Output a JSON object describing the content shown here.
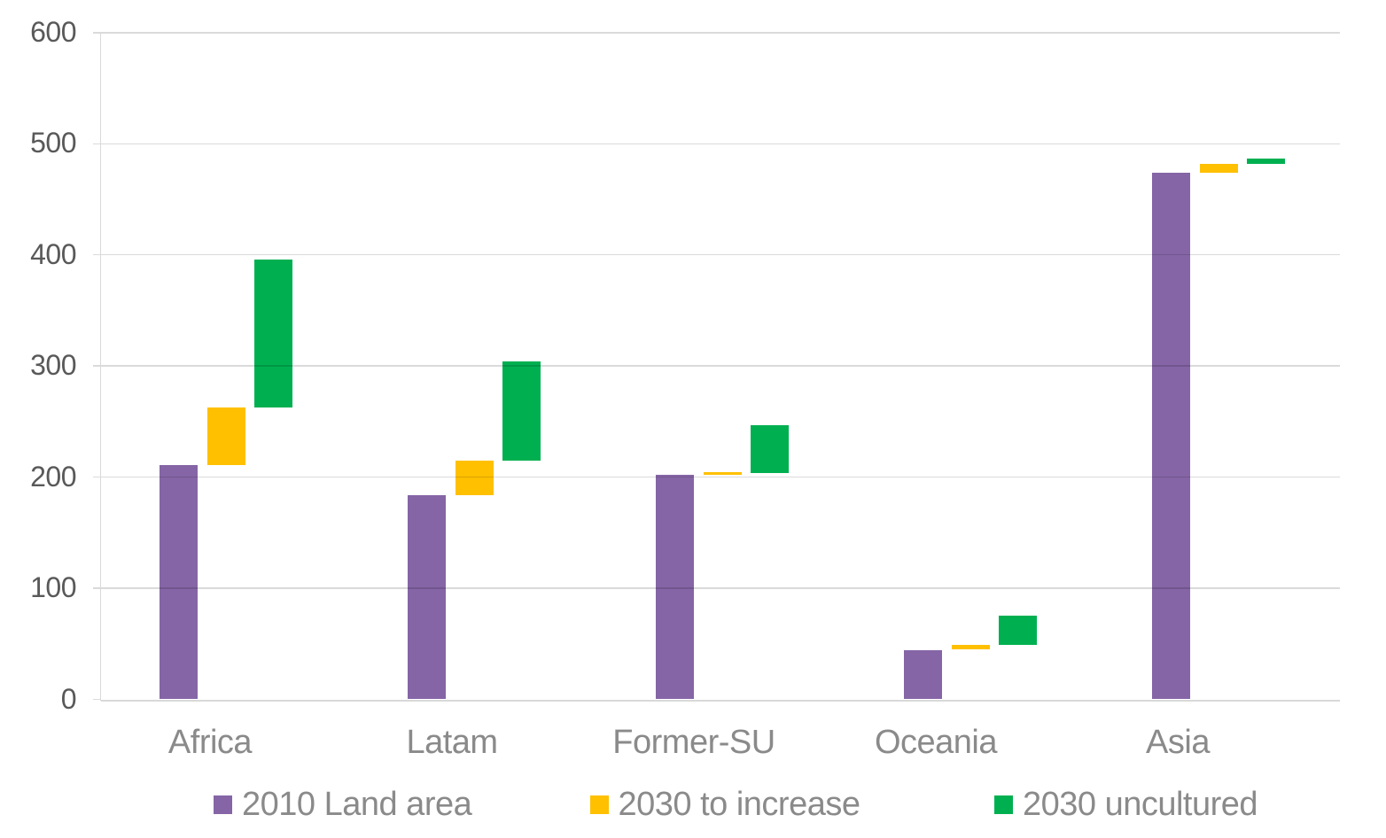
{
  "chart_data": {
    "type": "bar",
    "subtype": "grouped-floating-waterfall",
    "title": "",
    "xlabel": "",
    "ylabel": "",
    "categories": [
      "Africa",
      "Latam",
      "Former-SU",
      "Oceania",
      "Asia"
    ],
    "series": [
      {
        "name": "2010 Land area",
        "color": "#8565A6",
        "spans": [
          [
            0,
            211
          ],
          [
            0,
            184
          ],
          [
            0,
            202
          ],
          [
            0,
            44
          ],
          [
            0,
            474
          ]
        ]
      },
      {
        "name": "2030 to increase",
        "color": "#FFC000",
        "spans": [
          [
            211,
            263
          ],
          [
            184,
            215
          ],
          [
            202,
            204.5
          ],
          [
            45,
            49
          ],
          [
            474,
            482
          ]
        ]
      },
      {
        "name": "2030 uncultured",
        "color": "#00B050",
        "spans": [
          [
            263,
            396
          ],
          [
            215,
            304
          ],
          [
            203.5,
            247
          ],
          [
            49,
            75
          ],
          [
            482,
            486.5
          ]
        ]
      }
    ],
    "y_axis": {
      "min": 0,
      "max": 600,
      "step": 100,
      "tick_labels": [
        "0",
        "100",
        "200",
        "300",
        "400",
        "500",
        "600"
      ]
    },
    "grid": true,
    "legend_position": "bottom"
  },
  "colors": {
    "gridline": "#d9d9d9",
    "axis_line": "#d9d9d9",
    "y_label_text": "#595959",
    "x_label_text": "#8a8a8a",
    "legend_text": "#8a8a8a",
    "background": "#ffffff"
  }
}
